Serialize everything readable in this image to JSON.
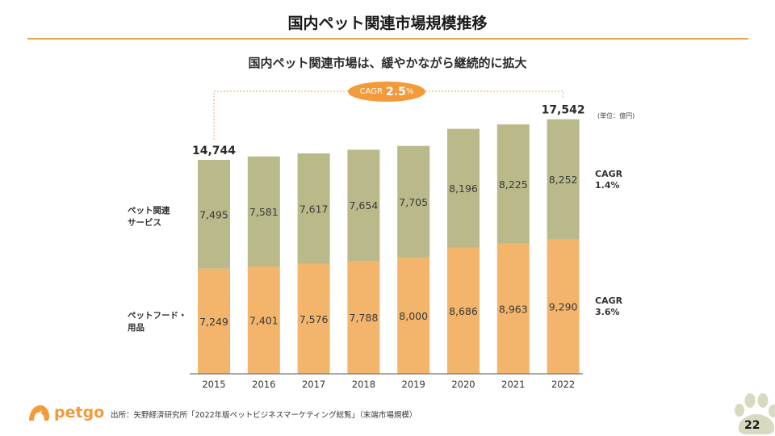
{
  "header": {
    "title": "国内ペット関連市場規模推移",
    "subtitle": "国内ペット関連市場は、緩やかながら継続的に拡大"
  },
  "chart_data": {
    "type": "bar",
    "stacked": true,
    "title": "国内ペット関連市場規模推移",
    "subtitle": "国内ペット関連市場は、緩やかながら継続的に拡大",
    "unit": "(単位：億円)",
    "categories": [
      "2015",
      "2016",
      "2017",
      "2018",
      "2019",
      "2020",
      "2021",
      "2022"
    ],
    "series": [
      {
        "name": "ペットフード・用品",
        "color": "#f2b56b",
        "values": [
          7249,
          7401,
          7576,
          7788,
          8000,
          8686,
          8963,
          9290
        ],
        "cagr": "3.6%"
      },
      {
        "name": "ペット関連サービス",
        "color": "#b9b98a",
        "values": [
          7495,
          7581,
          7617,
          7654,
          7705,
          8196,
          8225,
          8252
        ],
        "cagr": "1.4%"
      }
    ],
    "totals_shown": {
      "2015": "14,744",
      "2022": "17,542"
    },
    "overall_cagr": "2.5%",
    "xlabel": "",
    "ylabel": "",
    "ylim": [
      0,
      18000
    ],
    "grid": false,
    "legend": "left-inline"
  },
  "labels": {
    "unit": "(単位：億円)",
    "cagr_word": "CAGR",
    "overall_cagr_value": "2.5",
    "overall_cagr_pct": "%",
    "series_services_line1": "ペット関連",
    "series_services_line2": "サービス",
    "series_food_line1": "ペットフード・",
    "series_food_line2": "用品",
    "cagr_services": "1.4%",
    "cagr_food": "3.6%"
  },
  "footer": {
    "brand": "petgo",
    "source": "出所：矢野経済研究所「2022年版ペットビジネスマーケティング総覧」（末端市場規模）",
    "page_number": "22"
  },
  "colors": {
    "accent": "#f39a3a",
    "food": "#f2b56b",
    "services": "#b9b98a",
    "paw": "#d9d8c0"
  }
}
